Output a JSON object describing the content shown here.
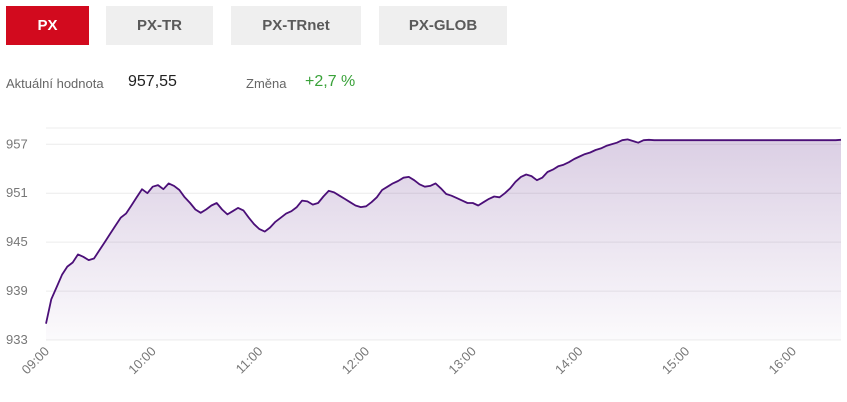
{
  "tabs": [
    {
      "label": "PX",
      "active": true
    },
    {
      "label": "PX-TR",
      "active": false
    },
    {
      "label": "PX-TRnet",
      "active": false
    },
    {
      "label": "PX-GLOB",
      "active": false
    }
  ],
  "stats": {
    "current_label": "Aktuální hodnota",
    "current_value": "957,55",
    "change_label": "Změna",
    "change_value": "+2,7 %"
  },
  "colors": {
    "accent": "#d20a1e",
    "line": "#4b0f78",
    "positive": "#3aa23a"
  },
  "chart_data": {
    "type": "area",
    "y_ticks": [
      "933",
      "939",
      "945",
      "951",
      "957"
    ],
    "x_ticks": [
      "09:00",
      "10:00",
      "11:00",
      "12:00",
      "13:00",
      "14:00",
      "15:00",
      "16:00"
    ],
    "ylim": [
      933,
      959
    ],
    "xlim": [
      9.0,
      16.45
    ],
    "grid": true,
    "series": [
      {
        "x": [
          9.0,
          9.05,
          9.1,
          9.15,
          9.2,
          9.25,
          9.3,
          9.35,
          9.4,
          9.45,
          9.5,
          9.55,
          9.6,
          9.65,
          9.7,
          9.75,
          9.8,
          9.85,
          9.9,
          9.95,
          10.0,
          10.05,
          10.1,
          10.15,
          10.2,
          10.25,
          10.3,
          10.35,
          10.4,
          10.45,
          10.5,
          10.55,
          10.6,
          10.65,
          10.7,
          10.75,
          10.8,
          10.85,
          10.9,
          10.95,
          11.0,
          11.05,
          11.1,
          11.15,
          11.2,
          11.25,
          11.3,
          11.35,
          11.4,
          11.45,
          11.5,
          11.55,
          11.6,
          11.65,
          11.7,
          11.75,
          11.8,
          11.85,
          11.9,
          11.95,
          12.0,
          12.05,
          12.1,
          12.15,
          12.2,
          12.25,
          12.3,
          12.35,
          12.4,
          12.45,
          12.5,
          12.55,
          12.6,
          12.65,
          12.7,
          12.75,
          12.8,
          12.85,
          12.9,
          12.95,
          13.0,
          13.05,
          13.1,
          13.15,
          13.2,
          13.25,
          13.3,
          13.35,
          13.4,
          13.45,
          13.5,
          13.55,
          13.6,
          13.65,
          13.7,
          13.75,
          13.8,
          13.85,
          13.9,
          13.95,
          14.0,
          14.05,
          14.1,
          14.15,
          14.2,
          14.25,
          14.3,
          14.35,
          14.4,
          14.45,
          14.5,
          14.55,
          14.6,
          14.65,
          14.7,
          14.75,
          14.8,
          14.85,
          14.9,
          14.95,
          15.0,
          15.05,
          15.1,
          15.15,
          15.2,
          15.25,
          15.3,
          15.35,
          15.4,
          15.45,
          15.5,
          15.55,
          15.6,
          15.65,
          15.7,
          15.75,
          15.8,
          15.85,
          15.9,
          15.95,
          16.0,
          16.05,
          16.1,
          16.15,
          16.2,
          16.25,
          16.3,
          16.35,
          16.4,
          16.45
        ],
        "values": [
          935.0,
          938.0,
          939.5,
          941.0,
          942.0,
          942.5,
          943.5,
          943.2,
          942.8,
          943.0,
          944.0,
          945.0,
          946.0,
          947.0,
          948.0,
          948.5,
          949.5,
          950.5,
          951.5,
          951.0,
          951.8,
          952.0,
          951.5,
          952.2,
          951.9,
          951.4,
          950.5,
          949.8,
          949.0,
          948.6,
          949.0,
          949.5,
          949.8,
          949.0,
          948.4,
          948.8,
          949.2,
          948.9,
          948.0,
          947.2,
          946.6,
          946.3,
          946.8,
          947.5,
          948.0,
          948.5,
          948.8,
          949.3,
          950.1,
          950.0,
          949.6,
          949.8,
          950.6,
          951.3,
          951.1,
          950.7,
          950.3,
          949.9,
          949.5,
          949.3,
          949.4,
          949.9,
          950.5,
          951.4,
          951.8,
          952.2,
          952.5,
          952.9,
          953.0,
          952.6,
          952.1,
          951.8,
          951.9,
          952.2,
          951.6,
          950.9,
          950.7,
          950.4,
          950.1,
          949.8,
          949.8,
          949.5,
          949.9,
          950.3,
          950.6,
          950.5,
          951.0,
          951.6,
          952.4,
          953.0,
          953.3,
          953.1,
          952.6,
          952.9,
          953.6,
          953.9,
          954.3,
          954.5,
          954.8,
          955.2,
          955.5,
          955.8,
          956.0,
          956.3,
          956.5,
          956.8,
          957.0,
          957.2,
          957.5,
          957.6,
          957.4,
          957.2,
          957.5,
          957.55,
          957.5,
          957.5,
          957.5,
          957.5,
          957.5,
          957.5,
          957.5,
          957.5,
          957.5,
          957.5,
          957.5,
          957.5,
          957.5,
          957.5,
          957.5,
          957.5,
          957.5,
          957.5,
          957.5,
          957.5,
          957.5,
          957.5,
          957.5,
          957.5,
          957.5,
          957.5,
          957.5,
          957.5,
          957.5,
          957.5,
          957.5,
          957.5,
          957.5,
          957.5,
          957.5,
          957.55
        ]
      }
    ]
  }
}
